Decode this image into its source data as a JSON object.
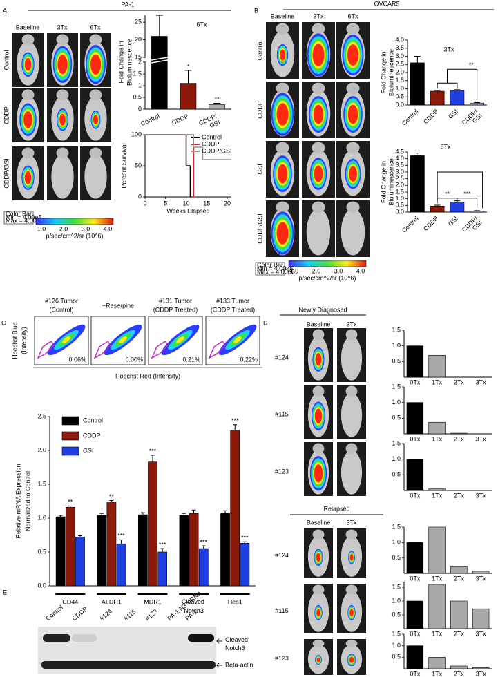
{
  "panels": {
    "A": {
      "label": "A",
      "title": "PA-1",
      "columns": [
        "Baseline",
        "3Tx",
        "6Tx"
      ],
      "rows": [
        "Control",
        "CDDP",
        "CDDP/GSI"
      ],
      "colorbar": {
        "title": "Color Bar",
        "min": "Min = 4.00e5",
        "max": "Max = 4.00e6",
        "ticks": [
          "1.0",
          "2.0",
          "3.0",
          "4.0"
        ],
        "unit": "p/sec/cm^2/sr (10^6)"
      }
    },
    "B": {
      "label": "B",
      "title": "OVCAR5",
      "columns": [
        "Baseline",
        "3Tx",
        "6Tx"
      ],
      "rows": [
        "Control",
        "CDDP",
        "GSI",
        "CDDP/GSI"
      ],
      "colorbar": {
        "title": "Color Bar",
        "min": "Min = 4.00e5",
        "max": "Max = 4.00e6",
        "ticks": [
          "1.0",
          "2.0",
          "3.0",
          "4.0"
        ],
        "unit": "p/sec/cm^2/sr (10^6)"
      }
    },
    "C": {
      "label": "C",
      "flow": {
        "samples": [
          {
            "name": "#126 Tumor",
            "sub": "(Control)",
            "pct": "0.06%"
          },
          {
            "name": "+Reserpine",
            "pct": "0.00%"
          },
          {
            "name": "#131 Tumor",
            "sub": "(CDDP Treated)",
            "pct": "0.21%"
          },
          {
            "name": "#133 Tumor",
            "sub": "(CDDP Treated)",
            "pct": "0.22%"
          }
        ],
        "ylabel": [
          "Hoechst Blue",
          "(Intensity)"
        ],
        "xlabel": "Hoechst Red (Intensity)"
      }
    },
    "D": {
      "label": "D",
      "groups": [
        {
          "title": "Newly Diagnosed",
          "columns": [
            "Baseline",
            "3Tx"
          ],
          "patients": [
            "#124",
            "#115",
            "#123"
          ]
        },
        {
          "title": "Relapsed",
          "columns": [
            "Baseline",
            "3Tx"
          ],
          "patients": [
            "#124",
            "#115",
            "#123"
          ]
        }
      ]
    },
    "E": {
      "label": "E",
      "lanes": [
        "Control",
        "CDDP",
        "#124",
        "#115",
        "#123",
        "PA-1 N3 siRNA",
        "PA-1"
      ],
      "bands": [
        "Cleaved Notch3",
        "Beta-actin"
      ]
    }
  },
  "chart_data": [
    {
      "type": "bar",
      "title": "6Tx",
      "ylabel": [
        "Fold Change in",
        "Bioluminescence"
      ],
      "categories": [
        "Control",
        "CDDP",
        "CDDP/GSI"
      ],
      "values": [
        21,
        1.1,
        0.2
      ],
      "errors": [
        6,
        0.55,
        0.05
      ],
      "colors": [
        "#000000",
        "#8b1a0a",
        "#b0b0b0"
      ],
      "stars": [
        null,
        "*",
        "**"
      ],
      "ylim": [
        0,
        27
      ],
      "axis_break": [
        2,
        15
      ],
      "yticks": [
        0,
        0.5,
        1,
        1.5,
        2,
        15,
        20,
        25
      ]
    },
    {
      "type": "line",
      "ylabel": [
        "Percent Survival"
      ],
      "xlabel": "Weeks Elapsed",
      "xlim": [
        0,
        21
      ],
      "ylim": [
        0,
        100
      ],
      "xticks": [
        0,
        5,
        10,
        15,
        20
      ],
      "yticks": [
        0,
        50,
        100
      ],
      "legend": "top-right",
      "series": [
        {
          "name": "Control",
          "color": "#000000",
          "x": [
            0,
            10,
            10,
            11,
            11
          ],
          "values": [
            100,
            100,
            50,
            50,
            0
          ]
        },
        {
          "name": "CDDP",
          "color": "#e02020",
          "x": [
            0,
            11.8,
            11.8
          ],
          "values": [
            100,
            100,
            0
          ]
        },
        {
          "name": "CDDP/GSI",
          "color": "#909090",
          "x": [
            0,
            11.8,
            11.8,
            14,
            14,
            21
          ],
          "values": [
            100,
            100,
            80,
            80,
            60,
            60
          ]
        }
      ]
    },
    {
      "type": "bar",
      "title": "3Tx",
      "ylabel": [
        "Fold Change in",
        "Bioluminescence"
      ],
      "categories": [
        "Control",
        "CDDP",
        "GSI",
        "CDDP/GSI"
      ],
      "values": [
        2.6,
        0.85,
        0.9,
        0.12
      ],
      "errors": [
        0.4,
        0.05,
        0.04,
        0.03
      ],
      "colors": [
        "#000000",
        "#8b1a0a",
        "#1f3fe0",
        "#b4a8d8"
      ],
      "significance": [
        "**"
      ],
      "ylim": [
        0,
        4
      ],
      "yticks": [
        {
          "value": 0,
          "label": "0.0"
        },
        0.5,
        {
          "value": 1,
          "label": "1.0"
        },
        1.5,
        {
          "value": 2,
          "label": "2.0"
        },
        2.5,
        {
          "value": 3,
          "label": "3.0"
        },
        3.5,
        {
          "value": 4,
          "label": "4.0"
        }
      ]
    },
    {
      "type": "bar",
      "title": "6Tx",
      "ylabel": [
        "Fold Change in",
        "Bioluminescence"
      ],
      "categories": [
        "Control",
        "CDDP",
        "GSI",
        "CDDP/GSI"
      ],
      "values": [
        4.22,
        0.45,
        0.75,
        0.08
      ],
      "errors": [
        0.05,
        0.07,
        0.1,
        0.03
      ],
      "colors": [
        "#000000",
        "#8b1a0a",
        "#1f3fe0",
        "#b4a8d8"
      ],
      "significance": [
        "**",
        "***"
      ],
      "ylim": [
        0,
        4.5
      ],
      "yticks": [
        {
          "value": 0,
          "label": "0.0"
        },
        0.5,
        {
          "value": 1,
          "label": "1.0"
        },
        1.5,
        {
          "value": 2,
          "label": "2.0"
        },
        2.5,
        {
          "value": 3,
          "label": "3.0"
        },
        3.5,
        {
          "value": 4,
          "label": "4.0"
        },
        4.5
      ]
    },
    {
      "type": "bar",
      "ylabel": [
        "Relative mRNA Expression",
        "Normalized to Control"
      ],
      "categories": [
        "CD44",
        "ALDH1",
        "MDR1",
        "Cleaved Notch3",
        "Hes1"
      ],
      "legend": "top-left",
      "ylim": [
        0,
        2.5
      ],
      "yticks": [
        {
          "value": 0,
          "label": "0.0"
        },
        0.5,
        {
          "value": 1,
          "label": "1.0"
        },
        1.5,
        {
          "value": 2,
          "label": "2.0"
        },
        2.5
      ],
      "series": [
        {
          "name": "Control",
          "color": "#000000",
          "values": [
            1.02,
            1.04,
            1.05,
            1.04,
            1.07
          ],
          "errors": [
            0.02,
            0.03,
            0.03,
            0.03,
            0.04
          ]
        },
        {
          "name": "CDDP",
          "color": "#8b1a0a",
          "values": [
            1.16,
            1.24,
            1.83,
            1.07,
            2.3
          ],
          "errors": [
            0.02,
            0.02,
            0.1,
            0.05,
            0.08
          ],
          "stars": [
            "**",
            "**",
            "***",
            null,
            "***"
          ]
        },
        {
          "name": "GSI",
          "color": "#1f3fe0",
          "values": [
            0.72,
            0.62,
            0.5,
            0.55,
            0.63
          ],
          "errors": [
            0.02,
            0.06,
            0.05,
            0.04,
            0.02
          ],
          "stars": [
            null,
            "***",
            "***",
            "***",
            "***"
          ]
        }
      ]
    },
    {
      "type": "bar",
      "categories": [
        "0Tx",
        "1Tx",
        "2Tx",
        "3Tx"
      ],
      "values": [
        1,
        0.7,
        0,
        0
      ],
      "colors": [
        "#000000",
        "#a8a8a8",
        "#a8a8a8",
        "#a8a8a8"
      ],
      "ylim": [
        0,
        1.5
      ],
      "yticks": [
        0.5,
        {
          "value": 1,
          "label": "1.0"
        },
        1.5
      ]
    },
    {
      "type": "bar",
      "categories": [
        "0Tx",
        "1Tx",
        "2Tx",
        "3Tx"
      ],
      "values": [
        1,
        0.37,
        0.02,
        0
      ],
      "colors": [
        "#000000",
        "#a8a8a8",
        "#a8a8a8",
        "#a8a8a8"
      ],
      "ylim": [
        0,
        1.5
      ],
      "yticks": [
        0.5,
        {
          "value": 1,
          "label": "1.0"
        },
        1.5
      ]
    },
    {
      "type": "bar",
      "categories": [
        "0Tx",
        "1Tx",
        "2Tx",
        "3Tx"
      ],
      "values": [
        1,
        0.05,
        0,
        0
      ],
      "colors": [
        "#000000",
        "#a8a8a8",
        "#a8a8a8",
        "#a8a8a8"
      ],
      "ylim": [
        0,
        1.5
      ],
      "yticks": [
        0.5,
        {
          "value": 1,
          "label": "1.0"
        },
        1.5
      ]
    },
    {
      "type": "bar",
      "categories": [
        "0Tx",
        "1Tx",
        "2Tx",
        "3Tx"
      ],
      "values": [
        1,
        1.5,
        0.22,
        0.07
      ],
      "colors": [
        "#000000",
        "#a8a8a8",
        "#a8a8a8",
        "#a8a8a8"
      ],
      "ylim": [
        0,
        1.5
      ],
      "yticks": [
        0.5,
        {
          "value": 1,
          "label": "1.0"
        },
        1.5
      ]
    },
    {
      "type": "bar",
      "categories": [
        "0Tx",
        "1Tx",
        "2Tx",
        "3Tx"
      ],
      "values": [
        1,
        1.6,
        1,
        0.72
      ],
      "colors": [
        "#000000",
        "#a8a8a8",
        "#a8a8a8",
        "#a8a8a8"
      ],
      "ylim": [
        0,
        1.7
      ],
      "yticks": [
        0.5,
        {
          "value": 1,
          "label": "1.0"
        },
        1.5
      ]
    },
    {
      "type": "bar",
      "categories": [
        "0Tx",
        "1Tx",
        "2Tx",
        "3Tx"
      ],
      "values": [
        1,
        0.5,
        0.12,
        0.05
      ],
      "colors": [
        "#000000",
        "#a8a8a8",
        "#a8a8a8",
        "#a8a8a8"
      ],
      "ylim": [
        0,
        1.5
      ],
      "yticks": [
        0.5,
        {
          "value": 1,
          "label": "1.0"
        },
        1.5
      ]
    }
  ]
}
